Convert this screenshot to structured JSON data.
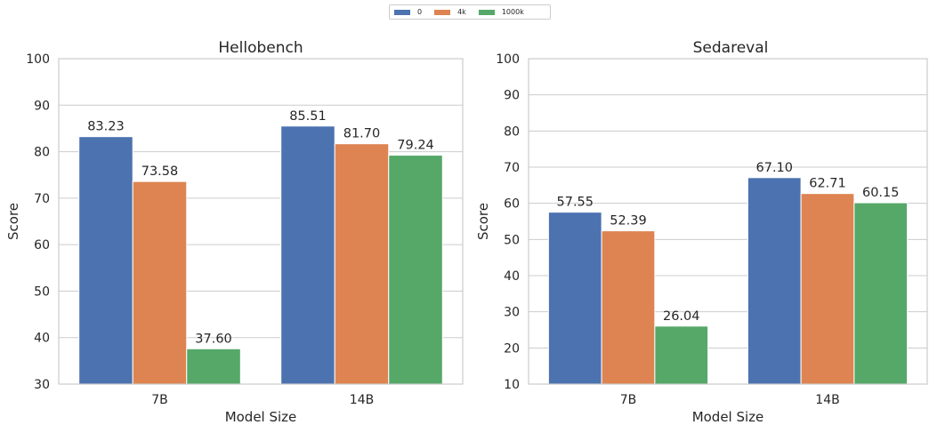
{
  "legend": {
    "placement": "top-center",
    "entries": [
      {
        "label": "0",
        "color": "#4c72b0"
      },
      {
        "label": "4k",
        "color": "#dd8452"
      },
      {
        "label": "1000k",
        "color": "#55a868"
      }
    ]
  },
  "chart_data": [
    {
      "type": "bar",
      "title": "Hellobench",
      "xlabel": "Model Size",
      "ylabel": "Score",
      "categories": [
        "7B",
        "14B"
      ],
      "ylim": [
        30,
        100
      ],
      "yticks": [
        "30",
        "40",
        "50",
        "60",
        "70",
        "80",
        "90",
        "100"
      ],
      "grid": true,
      "series": [
        {
          "name": "0",
          "values": [
            83.23,
            85.51
          ],
          "labels": [
            "83.23",
            "85.51"
          ]
        },
        {
          "name": "4k",
          "values": [
            73.58,
            81.7
          ],
          "labels": [
            "73.58",
            "81.70"
          ]
        },
        {
          "name": "1000k",
          "values": [
            37.6,
            79.24
          ],
          "labels": [
            "37.60",
            "79.24"
          ]
        }
      ]
    },
    {
      "type": "bar",
      "title": "Sedareval",
      "xlabel": "Model Size",
      "ylabel": "Score",
      "categories": [
        "7B",
        "14B"
      ],
      "ylim": [
        10,
        100
      ],
      "yticks": [
        "10",
        "20",
        "30",
        "40",
        "50",
        "60",
        "70",
        "80",
        "90",
        "100"
      ],
      "grid": true,
      "series": [
        {
          "name": "0",
          "values": [
            57.55,
            67.1
          ],
          "labels": [
            "57.55",
            "67.10"
          ]
        },
        {
          "name": "4k",
          "values": [
            52.39,
            62.71
          ],
          "labels": [
            "52.39",
            "62.71"
          ]
        },
        {
          "name": "1000k",
          "values": [
            26.04,
            60.15
          ],
          "labels": [
            "26.04",
            "60.15"
          ]
        }
      ]
    }
  ]
}
